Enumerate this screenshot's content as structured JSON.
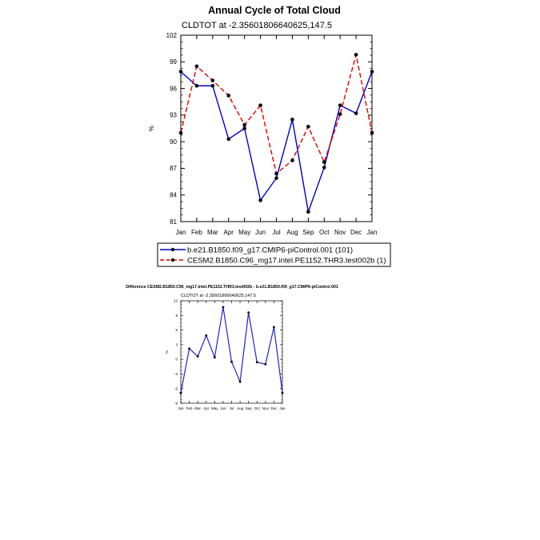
{
  "page": {
    "title": "Annual Cycle of Total Cloud",
    "diff_title": "Difference CESM2.B1850.C96_mg17.intel.PE1152.THR3.test002b - b.e21.B1850.f09_g17.CMIP6-piControl.001"
  },
  "colors": {
    "series1": "#0000cc",
    "series2": "#e00000",
    "diff_line": "#2222cc",
    "marker": "#000000",
    "axis": "#000000"
  },
  "chart_data": [
    {
      "type": "line",
      "title": "Annual Cycle of Total Cloud",
      "subtitle": "CLDTOT at -2.35601806640625,147.5",
      "xlabel": "",
      "ylabel": "%",
      "categories": [
        "Jan",
        "Feb",
        "Mar",
        "Apr",
        "May",
        "Jun",
        "Jul",
        "Aug",
        "Sep",
        "Oct",
        "Nov",
        "Dec",
        "Jan"
      ],
      "ylim": [
        81,
        102
      ],
      "yticks": [
        81,
        84,
        87,
        90,
        93,
        96,
        99,
        102
      ],
      "ytick_labels": [
        "81",
        "84",
        "87",
        "90",
        "93",
        "96",
        "99",
        "102"
      ],
      "grid": false,
      "legend_placement": "bottom",
      "series": [
        {
          "name": "b.e21.B1850.f09_g17.CMIP6-piControl.001 (101)",
          "style": "solid",
          "values": [
            97.9,
            96.3,
            96.3,
            90.3,
            91.5,
            83.4,
            85.9,
            92.5,
            82.1,
            87.1,
            94.1,
            93.2,
            97.9
          ]
        },
        {
          "name": "CESM2.B1850.C96_mg17.intel.PE1152.THR3.test002b (1)",
          "style": "dashed",
          "values": [
            91.0,
            98.5,
            96.9,
            95.2,
            91.9,
            94.1,
            86.4,
            87.9,
            91.7,
            87.7,
            93.1,
            99.8,
            91.0
          ]
        }
      ]
    },
    {
      "type": "line",
      "title": "Difference CESM2.B1850.C96_mg17.intel.PE1152.THR3.test002b - b.e21.B1850.f09_g17.CMIP6-piControl.001",
      "subtitle": "CLDTOT at -2.35601806640625,147.5",
      "xlabel": "",
      "ylabel": "%",
      "categories": [
        "Jan",
        "Feb",
        "Mar",
        "Apr",
        "May",
        "Jun",
        "Jul",
        "Aug",
        "Sep",
        "Oct",
        "Nov",
        "Dec",
        "Jan"
      ],
      "ylim": [
        -9,
        12
      ],
      "yticks": [
        -9,
        -6,
        -3,
        0,
        3,
        6,
        9,
        12
      ],
      "ytick_labels": [
        "-9",
        "-6",
        "-3",
        "0",
        "3",
        "6",
        "9",
        "12"
      ],
      "grid": false,
      "series": [
        {
          "name": "difference",
          "style": "solid",
          "values": [
            -6.9,
            2.2,
            0.6,
            4.9,
            0.4,
            10.7,
            -0.5,
            -4.6,
            9.6,
            -0.6,
            -1.0,
            6.6,
            -6.9
          ]
        }
      ]
    }
  ]
}
